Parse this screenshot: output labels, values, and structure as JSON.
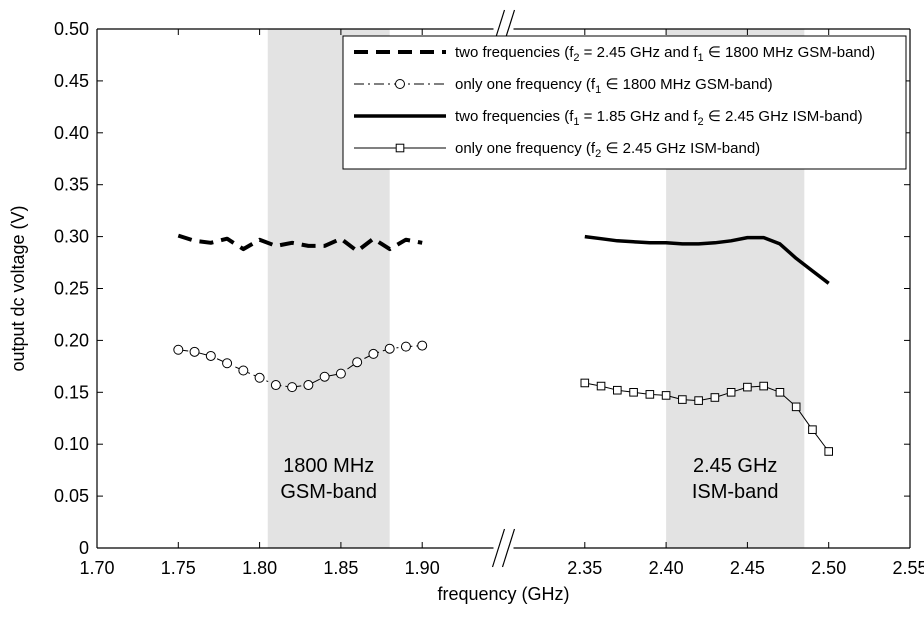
{
  "chart_data": {
    "type": "line",
    "title": "",
    "xlabel": "frequency (GHz)",
    "ylabel": "output dc voltage (V)",
    "ylim": [
      0,
      0.5
    ],
    "y_ticks": [
      "0",
      "0.05",
      "0.10",
      "0.15",
      "0.20",
      "0.25",
      "0.30",
      "0.35",
      "0.40",
      "0.45",
      "0.50"
    ],
    "x_segments": [
      {
        "xlim": [
          1.7,
          1.95
        ],
        "ticks": [
          1.7,
          1.75,
          1.8,
          1.85,
          1.9
        ],
        "tick_labels": [
          "1.70",
          "1.75",
          "1.80",
          "1.85",
          "1.90"
        ]
      },
      {
        "xlim": [
          2.3,
          2.55
        ],
        "ticks": [
          2.35,
          2.4,
          2.45,
          2.5,
          2.55
        ],
        "tick_labels": [
          "2.35",
          "2.40",
          "2.45",
          "2.50",
          "2.55"
        ]
      }
    ],
    "axis_break": true,
    "bands": [
      {
        "x_range": [
          1.805,
          1.88
        ],
        "label_lines": [
          "1800 MHz",
          "GSM-band"
        ],
        "color": "#e3e3e3"
      },
      {
        "x_range": [
          2.4,
          2.485
        ],
        "label_lines": [
          "2.45 GHz",
          "ISM-band"
        ],
        "color": "#e3e3e3"
      }
    ],
    "legend_position": "top-right",
    "series": [
      {
        "name": "two frequencies (f2 = 2.45 GHz and f1 ∈ 1800 MHz GSM-band)",
        "legend": {
          "pre": "two frequencies (f",
          "sub1": "2",
          "mid": " = 2.45 GHz and f",
          "sub2": "1",
          "post": " ∈ 1800 MHz GSM-band)"
        },
        "style": "dashed-thick",
        "x": [
          1.75,
          1.76,
          1.77,
          1.78,
          1.79,
          1.8,
          1.81,
          1.82,
          1.83,
          1.84,
          1.85,
          1.86,
          1.87,
          1.88,
          1.89,
          1.9
        ],
        "y": [
          0.301,
          0.296,
          0.294,
          0.298,
          0.288,
          0.297,
          0.291,
          0.294,
          0.291,
          0.291,
          0.298,
          0.286,
          0.298,
          0.288,
          0.297,
          0.294
        ]
      },
      {
        "name": "only one frequency (f1 ∈ 1800 MHz GSM-band)",
        "legend": {
          "pre": "only one frequency (f",
          "sub1": "1",
          "mid": " ∈ 1800 MHz GSM-band)",
          "sub2": "",
          "post": ""
        },
        "style": "dashdot-circle",
        "x": [
          1.75,
          1.76,
          1.77,
          1.78,
          1.79,
          1.8,
          1.81,
          1.82,
          1.83,
          1.84,
          1.85,
          1.86,
          1.87,
          1.88,
          1.89,
          1.9
        ],
        "y": [
          0.191,
          0.189,
          0.185,
          0.178,
          0.171,
          0.164,
          0.157,
          0.155,
          0.157,
          0.165,
          0.168,
          0.179,
          0.187,
          0.192,
          0.194,
          0.195
        ]
      },
      {
        "name": "two frequencies (f1 = 1.85 GHz and f2 ∈ 2.45 GHz ISM-band)",
        "legend": {
          "pre": "two frequencies (f",
          "sub1": "1",
          "mid": " = 1.85 GHz and f",
          "sub2": "2",
          "post": " ∈ 2.45 GHz ISM-band)"
        },
        "style": "solid-thick",
        "x": [
          2.35,
          2.36,
          2.37,
          2.38,
          2.39,
          2.4,
          2.41,
          2.42,
          2.43,
          2.44,
          2.45,
          2.46,
          2.47,
          2.48,
          2.49,
          2.5
        ],
        "y": [
          0.3,
          0.298,
          0.296,
          0.295,
          0.294,
          0.294,
          0.293,
          0.293,
          0.294,
          0.296,
          0.299,
          0.299,
          0.293,
          0.279,
          0.267,
          0.255
        ]
      },
      {
        "name": "only one frequency (f2 ∈ 2.45 GHz ISM-band)",
        "legend": {
          "pre": "only one frequency (f",
          "sub1": "2",
          "mid": " ∈ 2.45 GHz ISM-band)",
          "sub2": "",
          "post": ""
        },
        "style": "solid-square",
        "x": [
          2.35,
          2.36,
          2.37,
          2.38,
          2.39,
          2.4,
          2.41,
          2.42,
          2.43,
          2.44,
          2.45,
          2.46,
          2.47,
          2.48,
          2.49,
          2.5
        ],
        "y": [
          0.159,
          0.156,
          0.152,
          0.15,
          0.148,
          0.147,
          0.143,
          0.142,
          0.145,
          0.15,
          0.155,
          0.156,
          0.15,
          0.136,
          0.114,
          0.093
        ]
      }
    ]
  }
}
